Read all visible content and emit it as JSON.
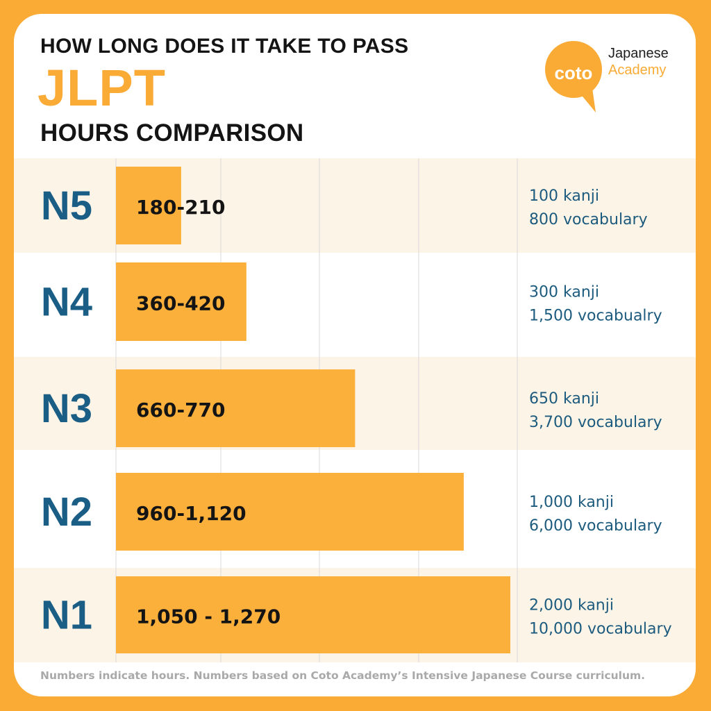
{
  "header": {
    "line1": "HOW LONG DOES IT TAKE TO PASS",
    "line2": "JLPT",
    "line3": "HOURS COMPARISON"
  },
  "logo": {
    "wordmark": "coto",
    "line1": "Japanese",
    "line2": "Academy"
  },
  "footnote": "Numbers indicate hours. Numbers based on Coto Academy’s Intensive Japanese Course curriculum.",
  "colors": {
    "background": "#f9ab36",
    "bar": "#fbb03b",
    "level_text": "#1b5e85",
    "detail_text": "#1c5b7e",
    "band_tint": "#fdf4e8"
  },
  "chart_data": {
    "type": "bar",
    "orientation": "horizontal",
    "categories": [
      "N5",
      "N4",
      "N3",
      "N2",
      "N1"
    ],
    "values": [
      210,
      420,
      770,
      1120,
      1270
    ],
    "value_labels": [
      "180-210",
      "360-420",
      "660-770",
      "960-1,120",
      "1,050 - 1,270"
    ],
    "details": [
      [
        "100 kanji",
        "800 vocabulary"
      ],
      [
        "300 kanji",
        "1,500 vocabualry"
      ],
      [
        "650 kanji",
        "3,700 vocabulary"
      ],
      [
        "1,000 kanji",
        "6,000 vocabulary"
      ],
      [
        "2,000 kanji",
        "10,000 vocabulary"
      ]
    ],
    "xlim": [
      0,
      1270
    ],
    "grid": true
  }
}
